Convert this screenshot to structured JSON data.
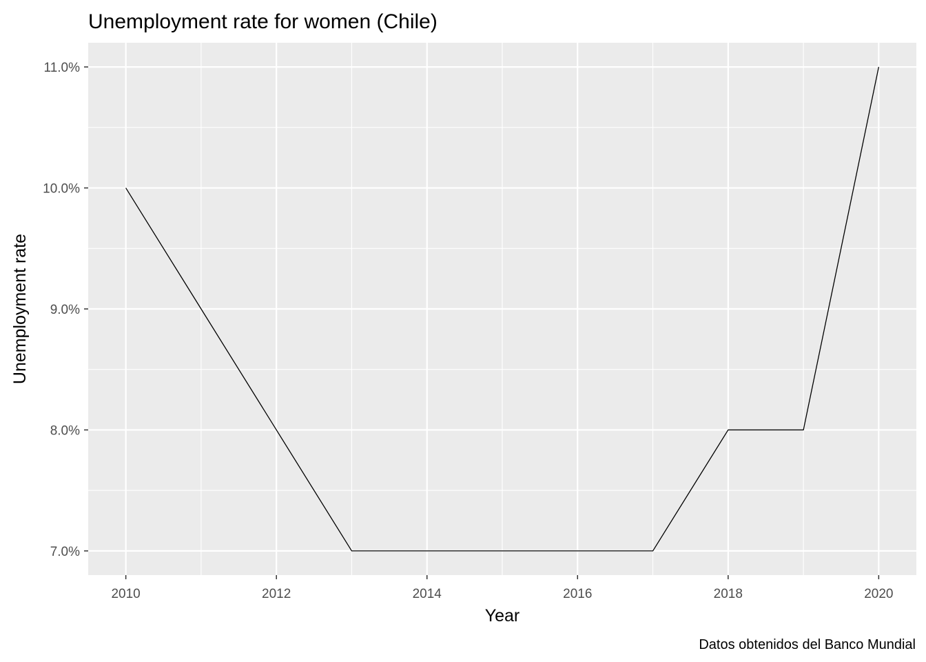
{
  "chart_data": {
    "type": "line",
    "title": "Unemployment rate for women (Chile)",
    "xlabel": "Year",
    "ylabel": "Unemployment rate",
    "caption": "Datos obtenidos del Banco Mundial",
    "x": [
      2010,
      2011,
      2012,
      2013,
      2014,
      2015,
      2016,
      2017,
      2018,
      2019,
      2020
    ],
    "series": [
      {
        "values": [
          10,
          9,
          8,
          7,
          7,
          7,
          7,
          7,
          8,
          8,
          11
        ]
      }
    ],
    "xlim": [
      2009.5,
      2020.5
    ],
    "ylim": [
      6.8,
      11.2
    ],
    "x_ticks": [
      2010,
      2012,
      2014,
      2016,
      2018,
      2020
    ],
    "x_tick_labels": [
      "2010",
      "2012",
      "2014",
      "2016",
      "2018",
      "2020"
    ],
    "y_ticks": [
      7,
      8,
      9,
      10,
      11
    ],
    "y_tick_labels": [
      "7.0%",
      "8.0%",
      "9.0%",
      "10.0%",
      "11.0%"
    ],
    "grid": true,
    "legend": "none",
    "colors": {
      "panel": "#ebebeb",
      "grid": "#ffffff",
      "line": "#000000",
      "tick_text": "#4d4d4d"
    }
  }
}
